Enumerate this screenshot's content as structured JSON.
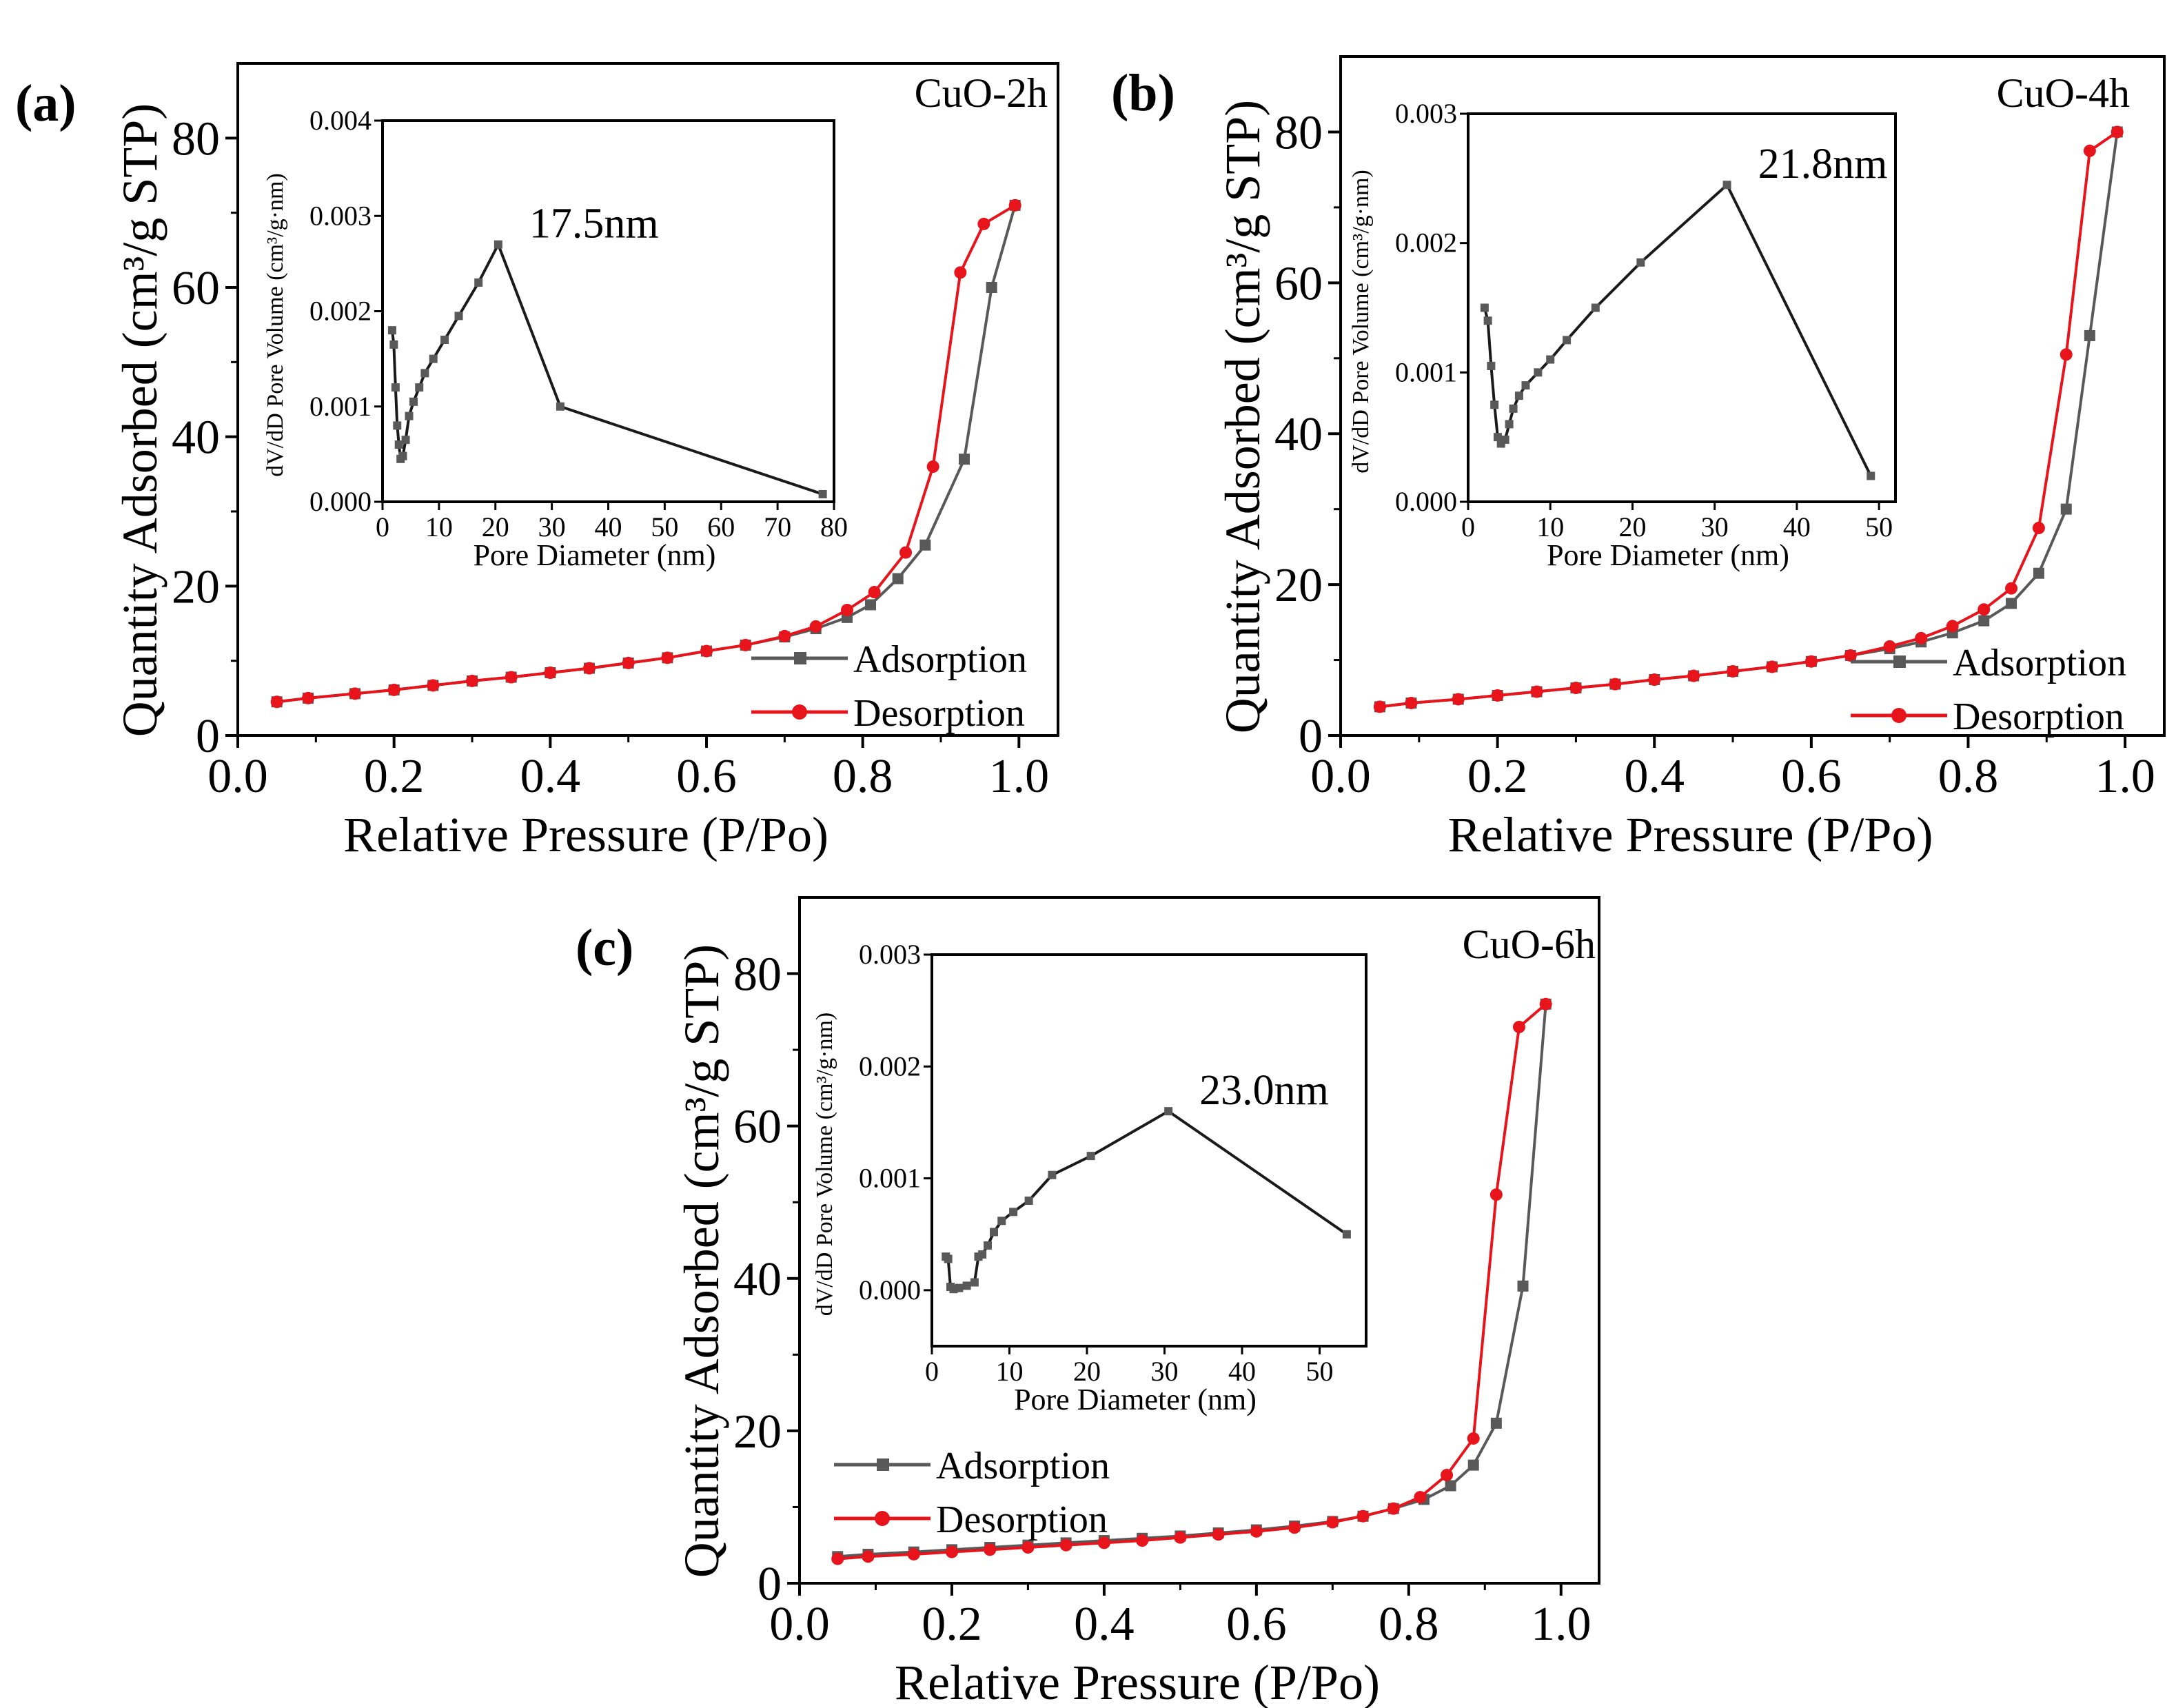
{
  "figure": {
    "caption": "",
    "colors": {
      "adsorption": "#595959",
      "desorption": "#e8141b",
      "axis": "#000000",
      "inset_line": "#1a1a1a"
    }
  },
  "chart_data": [
    {
      "panel": "(a)",
      "type": "line",
      "sample": "CuO-2h",
      "xlabel": "Relative Pressure (P/Po)",
      "ylabel": "Quantity Adsorbed (cm³/g STP)",
      "xlim": [
        0.0,
        1.05
      ],
      "ylim": [
        0,
        90
      ],
      "xticks": [
        "0.0",
        "0.2",
        "0.4",
        "0.6",
        "0.8",
        "1.0"
      ],
      "yticks": [
        "0",
        "20",
        "40",
        "60",
        "80"
      ],
      "legend": [
        "Adsorption",
        "Desorption"
      ],
      "legend_position": "bottom-right",
      "series": [
        {
          "name": "Adsorption",
          "x": [
            0.05,
            0.09,
            0.15,
            0.2,
            0.25,
            0.3,
            0.35,
            0.4,
            0.45,
            0.5,
            0.55,
            0.6,
            0.65,
            0.7,
            0.74,
            0.78,
            0.81,
            0.845,
            0.88,
            0.93,
            0.965,
            0.995
          ],
          "y": [
            4.5,
            5.0,
            5.6,
            6.1,
            6.7,
            7.3,
            7.8,
            8.4,
            9.0,
            9.7,
            10.4,
            11.3,
            12.1,
            13.2,
            14.3,
            15.8,
            17.5,
            21,
            25.5,
            37,
            60,
            71
          ]
        },
        {
          "name": "Desorption",
          "x": [
            0.05,
            0.09,
            0.15,
            0.2,
            0.25,
            0.3,
            0.35,
            0.4,
            0.45,
            0.5,
            0.55,
            0.6,
            0.65,
            0.7,
            0.74,
            0.78,
            0.815,
            0.855,
            0.89,
            0.925,
            0.955,
            0.995
          ],
          "y": [
            4.5,
            5.0,
            5.6,
            6.1,
            6.7,
            7.3,
            7.8,
            8.4,
            9.0,
            9.7,
            10.4,
            11.3,
            12.1,
            13.3,
            14.6,
            16.8,
            19.2,
            24.5,
            36,
            62,
            68.5,
            71
          ]
        }
      ],
      "inset": {
        "type": "line",
        "xlabel": "Pore Diameter (nm)",
        "ylabel": "dV/dD Pore Volume (cm³/g·nm)",
        "xlim": [
          0,
          80
        ],
        "ylim": [
          0,
          0.004
        ],
        "xticks": [
          "0",
          "10",
          "20",
          "30",
          "40",
          "50",
          "60",
          "70",
          "80"
        ],
        "yticks": [
          "0.000",
          "0.001",
          "0.002",
          "0.003",
          "0.004"
        ],
        "peak_label": "17.5nm",
        "x": [
          1.7,
          2.0,
          2.3,
          2.6,
          2.9,
          3.2,
          3.6,
          4.1,
          4.7,
          5.5,
          6.5,
          7.5,
          9,
          11,
          13.5,
          17,
          20.5,
          31.5,
          78
        ],
        "y": [
          0.0018,
          0.00165,
          0.0012,
          0.0008,
          0.0006,
          0.00045,
          0.00048,
          0.00065,
          0.0009,
          0.00105,
          0.0012,
          0.00135,
          0.0015,
          0.0017,
          0.00195,
          0.0023,
          0.0027,
          0.001,
          8e-05
        ]
      }
    },
    {
      "panel": "(b)",
      "type": "line",
      "sample": "CuO-4h",
      "xlabel": "Relative Pressure (P/Po)",
      "ylabel": "Quantity Adsorbed (cm³/g STP)",
      "xlim": [
        0.0,
        1.05
      ],
      "ylim": [
        0,
        90
      ],
      "xticks": [
        "0.0",
        "0.2",
        "0.4",
        "0.6",
        "0.8",
        "1.0"
      ],
      "yticks": [
        "0",
        "20",
        "40",
        "60",
        "80"
      ],
      "legend": [
        "Adsorption",
        "Desorption"
      ],
      "legend_position": "bottom-right",
      "series": [
        {
          "name": "Adsorption",
          "x": [
            0.05,
            0.09,
            0.15,
            0.2,
            0.25,
            0.3,
            0.35,
            0.4,
            0.45,
            0.5,
            0.55,
            0.6,
            0.65,
            0.7,
            0.74,
            0.78,
            0.82,
            0.855,
            0.89,
            0.925,
            0.955,
            0.99
          ],
          "y": [
            3.8,
            4.3,
            4.8,
            5.3,
            5.8,
            6.3,
            6.8,
            7.4,
            7.9,
            8.5,
            9.1,
            9.8,
            10.6,
            11.5,
            12.4,
            13.6,
            15.2,
            17.5,
            21.5,
            30,
            53,
            80
          ]
        },
        {
          "name": "Desorption",
          "x": [
            0.05,
            0.09,
            0.15,
            0.2,
            0.25,
            0.3,
            0.35,
            0.4,
            0.45,
            0.5,
            0.55,
            0.6,
            0.65,
            0.7,
            0.74,
            0.78,
            0.82,
            0.855,
            0.89,
            0.925,
            0.955,
            0.99
          ],
          "y": [
            3.8,
            4.3,
            4.8,
            5.3,
            5.8,
            6.3,
            6.8,
            7.4,
            7.9,
            8.5,
            9.1,
            9.8,
            10.6,
            11.8,
            12.9,
            14.5,
            16.7,
            19.5,
            27.5,
            50.5,
            77.5,
            80
          ]
        }
      ],
      "inset": {
        "type": "line",
        "xlabel": "Pore Diameter (nm)",
        "ylabel": "dV/dD Pore Volume (cm³/g·nm)",
        "xlim": [
          0,
          52
        ],
        "ylim": [
          0,
          0.003
        ],
        "xticks": [
          "0",
          "10",
          "20",
          "30",
          "40",
          "50"
        ],
        "yticks": [
          "0.000",
          "0.001",
          "0.002",
          "0.003"
        ],
        "peak_label": "21.8nm",
        "x": [
          2.0,
          2.4,
          2.8,
          3.2,
          3.6,
          4.0,
          4.5,
          5.0,
          5.5,
          6.2,
          7.0,
          8.5,
          10,
          12,
          15.5,
          21,
          31.5,
          49
        ],
        "y": [
          0.0015,
          0.0014,
          0.00105,
          0.00075,
          0.0005,
          0.00045,
          0.00048,
          0.0006,
          0.00072,
          0.00082,
          0.0009,
          0.001,
          0.0011,
          0.00125,
          0.0015,
          0.00185,
          0.00245,
          0.0002
        ]
      }
    },
    {
      "panel": "(c)",
      "type": "line",
      "sample": "CuO-6h",
      "xlabel": "Relative Pressure (P/Po)",
      "ylabel": "Quantity Adsorbed (cm³/g STP)",
      "xlim": [
        0.0,
        1.05
      ],
      "ylim": [
        0,
        90
      ],
      "xticks": [
        "0.0",
        "0.2",
        "0.4",
        "0.6",
        "0.8",
        "1.0"
      ],
      "yticks": [
        "0",
        "20",
        "40",
        "60",
        "80"
      ],
      "legend": [
        "Adsorption",
        "Desorption"
      ],
      "legend_position": "bottom-left",
      "series": [
        {
          "name": "Adsorption",
          "x": [
            0.05,
            0.09,
            0.15,
            0.2,
            0.25,
            0.3,
            0.35,
            0.4,
            0.45,
            0.5,
            0.55,
            0.6,
            0.65,
            0.7,
            0.74,
            0.78,
            0.82,
            0.855,
            0.885,
            0.915,
            0.95,
            0.98
          ],
          "y": [
            3.5,
            3.8,
            4.1,
            4.4,
            4.7,
            5.0,
            5.3,
            5.6,
            5.9,
            6.2,
            6.6,
            7.0,
            7.5,
            8.1,
            8.8,
            9.8,
            11.0,
            12.8,
            15.5,
            21,
            39,
            76
          ]
        },
        {
          "name": "Desorption",
          "x": [
            0.05,
            0.09,
            0.15,
            0.2,
            0.25,
            0.3,
            0.35,
            0.4,
            0.45,
            0.5,
            0.55,
            0.6,
            0.65,
            0.7,
            0.74,
            0.78,
            0.815,
            0.85,
            0.885,
            0.915,
            0.945,
            0.98
          ],
          "y": [
            3.2,
            3.5,
            3.8,
            4.1,
            4.4,
            4.7,
            5.0,
            5.3,
            5.6,
            6.0,
            6.4,
            6.8,
            7.3,
            8.0,
            8.8,
            9.8,
            11.3,
            14.2,
            19,
            51,
            73,
            76
          ]
        }
      ],
      "inset": {
        "type": "line",
        "xlabel": "Pore Diameter (nm)",
        "ylabel": "dV/dD Pore Volume (cm³/g·nm)",
        "xlim": [
          0,
          56
        ],
        "ylim": [
          -0.0005,
          0.003
        ],
        "xticks": [
          "0",
          "10",
          "20",
          "30",
          "40",
          "50"
        ],
        "yticks": [
          "0.000",
          "0.001",
          "0.002",
          "0.003"
        ],
        "peak_label": "23.0nm",
        "x": [
          1.8,
          2.1,
          2.4,
          2.8,
          3.5,
          4.5,
          5.5,
          6.0,
          6.5,
          7.2,
          8.0,
          9.0,
          10.5,
          12.5,
          15.5,
          20.5,
          30.5,
          53.5
        ],
        "y": [
          0.0003,
          0.00028,
          3e-05,
          1e-05,
          2e-05,
          4e-05,
          7e-05,
          0.0003,
          0.00032,
          0.0004,
          0.00052,
          0.00062,
          0.0007,
          0.0008,
          0.00103,
          0.0012,
          0.0016,
          0.0005
        ]
      }
    }
  ]
}
